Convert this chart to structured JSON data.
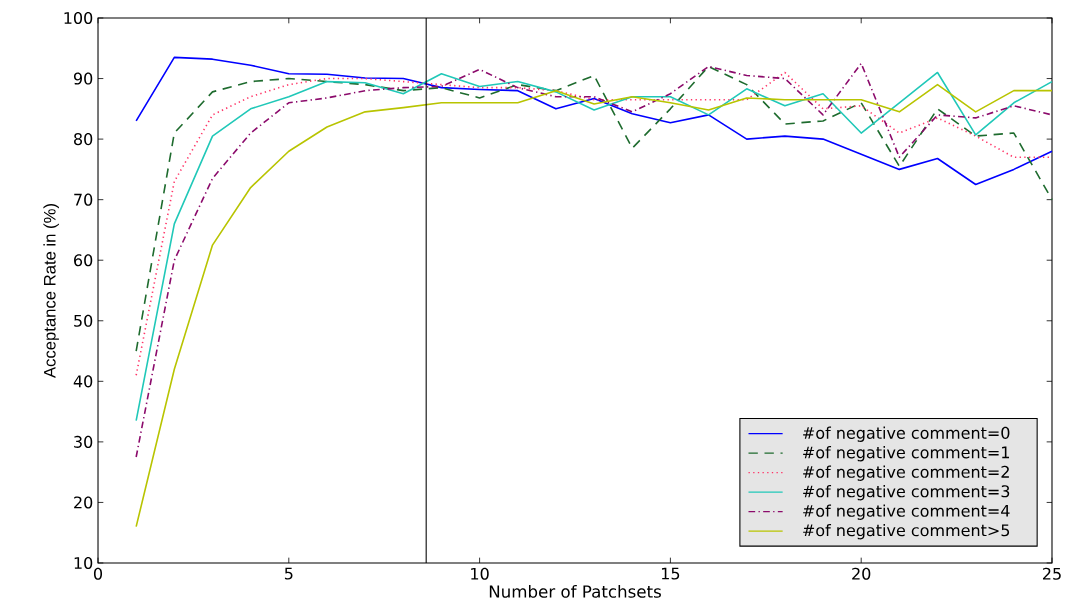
{
  "chart_data": {
    "type": "line",
    "xlabel": "Number of Patchsets",
    "ylabel": "Acceptance Rate in (%)",
    "x": [
      1,
      2,
      3,
      4,
      5,
      6,
      7,
      8,
      9,
      10,
      11,
      12,
      13,
      14,
      15,
      16,
      17,
      18,
      19,
      20,
      21,
      22,
      23,
      24,
      25
    ],
    "series": [
      {
        "name": "#of negative comment=0",
        "color": "#0000ff",
        "line_style": "solid",
        "values": [
          83,
          93.5,
          93.2,
          92.2,
          90.8,
          90.7,
          90.1,
          90,
          88.5,
          88.2,
          88,
          85,
          86.7,
          84.2,
          82.7,
          84,
          80,
          80.5,
          80,
          77.5,
          75,
          76.8,
          72.5,
          75,
          78
        ]
      },
      {
        "name": "#of negative comment=1",
        "color": "#1e6b2e",
        "line_style": "dashed",
        "values": [
          45,
          81,
          87.8,
          89.5,
          90,
          89.5,
          89,
          88,
          88.5,
          86.8,
          89,
          88,
          90.5,
          78.5,
          85,
          92,
          89,
          82.5,
          83,
          86,
          75.5,
          85,
          80.5,
          81,
          70
        ]
      },
      {
        "name": "#of negative comment=2",
        "color": "#ff3366",
        "line_style": "dotted",
        "values": [
          41,
          73,
          84,
          87,
          89,
          90,
          90,
          89.5,
          89,
          88.5,
          88.5,
          88,
          86.5,
          86.5,
          86.5,
          86.5,
          86.5,
          91,
          85,
          85.5,
          81,
          83.5,
          80.5,
          77,
          77
        ]
      },
      {
        "name": "#of negative comment=3",
        "color": "#20c8b8",
        "line_style": "solid",
        "values": [
          33.5,
          66,
          80.5,
          85,
          87,
          89.5,
          89.3,
          87.5,
          90.8,
          88.7,
          89.5,
          87.8,
          84.8,
          87,
          87,
          84,
          88.3,
          85.5,
          87.5,
          81,
          86,
          91,
          80.7,
          86,
          89.5
        ]
      },
      {
        "name": "#of negative comment=4",
        "color": "#8b0a6b",
        "line_style": "dashdot",
        "values": [
          27.5,
          60,
          73.5,
          81,
          86,
          86.8,
          88,
          88.5,
          88.7,
          91.5,
          88.5,
          87,
          87,
          84.5,
          87.5,
          92,
          90.5,
          90,
          84,
          92.5,
          77,
          84,
          83.5,
          85.5,
          84
        ]
      },
      {
        "name": "#of negative comment>5",
        "color": "#b8c400",
        "line_style": "solid",
        "values": [
          16,
          42,
          62.5,
          72,
          78,
          82,
          84.5,
          85.2,
          86,
          86,
          86,
          88,
          85.8,
          87,
          86,
          84.8,
          86.8,
          86.5,
          86.5,
          86.5,
          84.5,
          89,
          84.5,
          88,
          88
        ]
      }
    ],
    "xlim": [
      0,
      25
    ],
    "ylim": [
      10,
      100
    ],
    "xticks": [
      0,
      5,
      10,
      15,
      20,
      25
    ],
    "yticks": [
      10,
      20,
      30,
      40,
      50,
      60,
      70,
      80,
      90,
      100
    ],
    "ref_lines": [
      {
        "axis": "x",
        "value": 8.6,
        "color": "#000000"
      }
    ],
    "legend": "bottom right",
    "grid": false
  }
}
